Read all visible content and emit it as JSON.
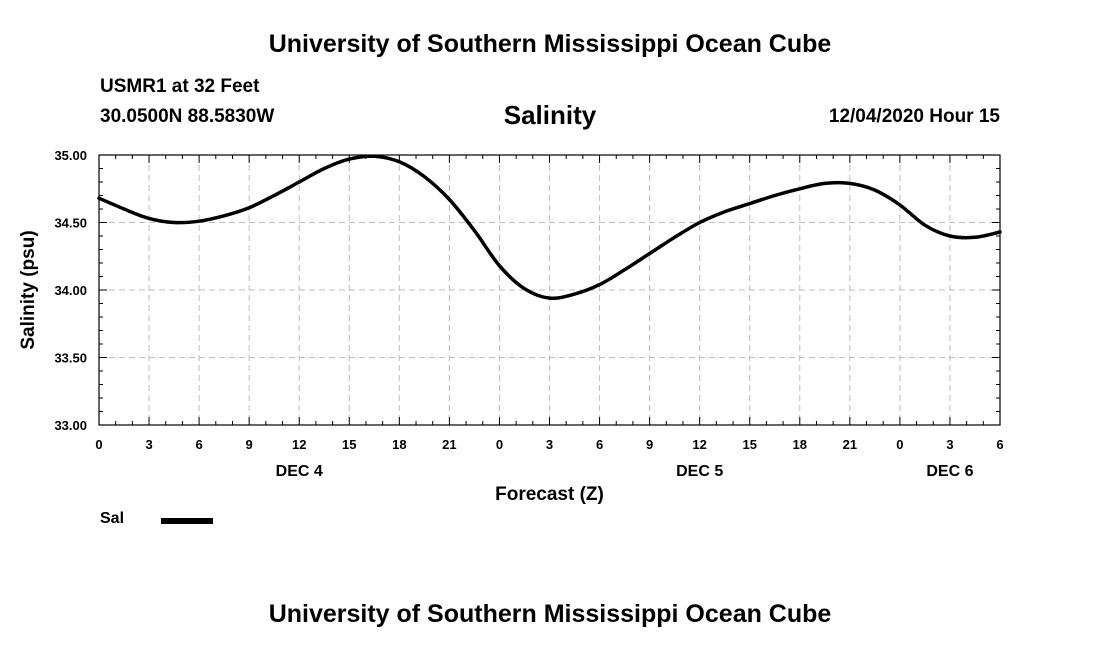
{
  "header": {
    "title": "University of Southern Mississippi Ocean Cube",
    "station": "USMR1 at 32 Feet",
    "coordinates": "30.0500N 88.5830W",
    "chart_title": "Salinity",
    "run_info": "12/04/2020 Hour 15"
  },
  "footer": {
    "title": "University of Southern Mississippi Ocean Cube"
  },
  "legend": {
    "items": [
      {
        "label": "Sal",
        "color": "#000000"
      }
    ]
  },
  "chart_data": {
    "type": "line",
    "title": "Salinity",
    "xlabel": "Forecast (Z)",
    "ylabel": "Salinity (psu)",
    "ylim": [
      33.0,
      35.0
    ],
    "yticks": [
      "33.00",
      "33.50",
      "34.00",
      "34.50",
      "35.00"
    ],
    "xlim": [
      0,
      54
    ],
    "xtick_labels": [
      "0",
      "3",
      "6",
      "9",
      "12",
      "15",
      "18",
      "21",
      "0",
      "3",
      "6",
      "9",
      "12",
      "15",
      "18",
      "21",
      "0",
      "3",
      "6"
    ],
    "date_labels": [
      {
        "label": "DEC 4",
        "at": 12
      },
      {
        "label": "DEC 5",
        "at": 36
      },
      {
        "label": "DEC 6",
        "at": 51
      }
    ],
    "grid": true,
    "series": [
      {
        "name": "Sal",
        "color": "#000000",
        "x": [
          0,
          1.5,
          3,
          4.5,
          6,
          7.5,
          9,
          10.5,
          12,
          13.5,
          15,
          16.5,
          18,
          19.5,
          21,
          22.5,
          24,
          25.5,
          27,
          28.5,
          30,
          31.5,
          33,
          34.5,
          36,
          37.5,
          39,
          40.5,
          42,
          43.5,
          45,
          46.5,
          48,
          49.5,
          51,
          52.5,
          54
        ],
        "y": [
          34.68,
          34.6,
          34.53,
          34.5,
          34.51,
          34.55,
          34.61,
          34.7,
          34.8,
          34.9,
          34.97,
          34.99,
          34.95,
          34.84,
          34.67,
          34.44,
          34.18,
          34.01,
          33.94,
          33.97,
          34.04,
          34.15,
          34.27,
          34.39,
          34.5,
          34.58,
          34.64,
          34.7,
          34.75,
          34.79,
          34.79,
          34.74,
          34.63,
          34.48,
          34.4,
          34.39,
          34.43
        ]
      }
    ]
  }
}
